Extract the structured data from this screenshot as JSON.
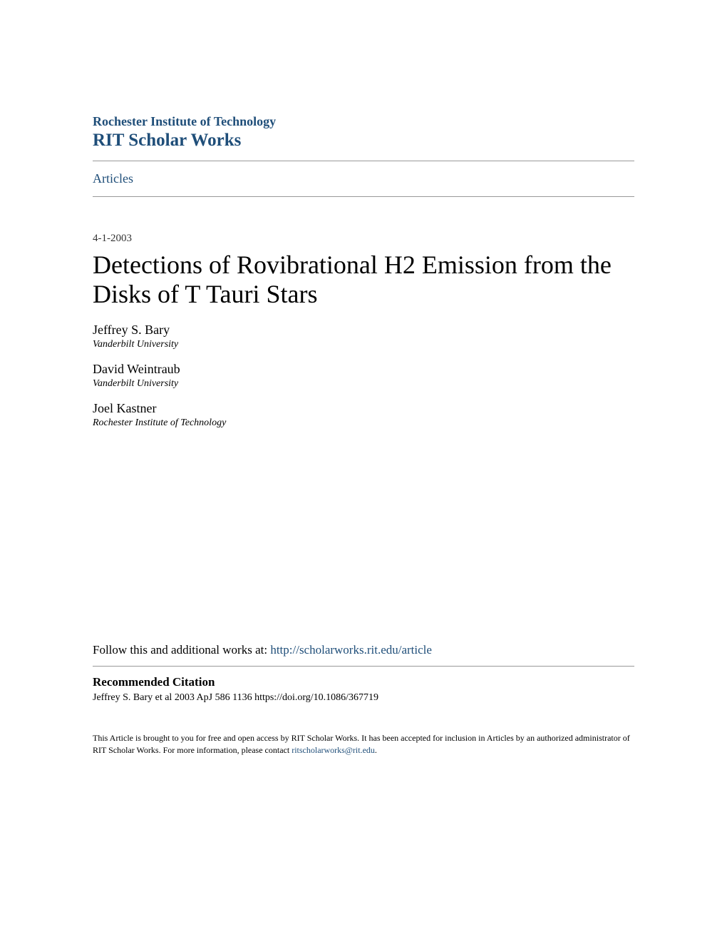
{
  "header": {
    "institution": "Rochester Institute of Technology",
    "scholar_works": "RIT Scholar Works",
    "institution_color": "#1f4e79"
  },
  "nav": {
    "articles_label": "Articles"
  },
  "article": {
    "date": "4-1-2003",
    "title": "Detections of Rovibrational H2 Emission from the Disks of T Tauri Stars"
  },
  "authors": [
    {
      "name": "Jeffrey S. Bary",
      "affiliation": "Vanderbilt University"
    },
    {
      "name": "David Weintraub",
      "affiliation": "Vanderbilt University"
    },
    {
      "name": "Joel Kastner",
      "affiliation": "Rochester Institute of Technology"
    }
  ],
  "follow": {
    "prefix": "Follow this and additional works at: ",
    "url": "http://scholarworks.rit.edu/article"
  },
  "citation": {
    "heading": "Recommended Citation",
    "text": "Jeffrey S. Bary et al 2003 ApJ 586 1136 https://doi.org/10.1086/367719"
  },
  "footer": {
    "text_part1": "This Article is brought to you for free and open access by RIT Scholar Works. It has been accepted for inclusion in Articles by an authorized administrator of RIT Scholar Works. For more information, please contact ",
    "email": "ritscholarworks@rit.edu",
    "text_part2": "."
  },
  "style": {
    "background_color": "#ffffff",
    "link_color": "#1f4e79",
    "text_color": "#000000",
    "divider_color": "#999999",
    "title_fontsize": 36,
    "institution_fontsize": 18,
    "scholar_works_fontsize": 25,
    "body_fontsize": 17,
    "author_fontsize": 18,
    "affiliation_fontsize": 14,
    "citation_fontsize": 14,
    "footer_fontsize": 12
  }
}
